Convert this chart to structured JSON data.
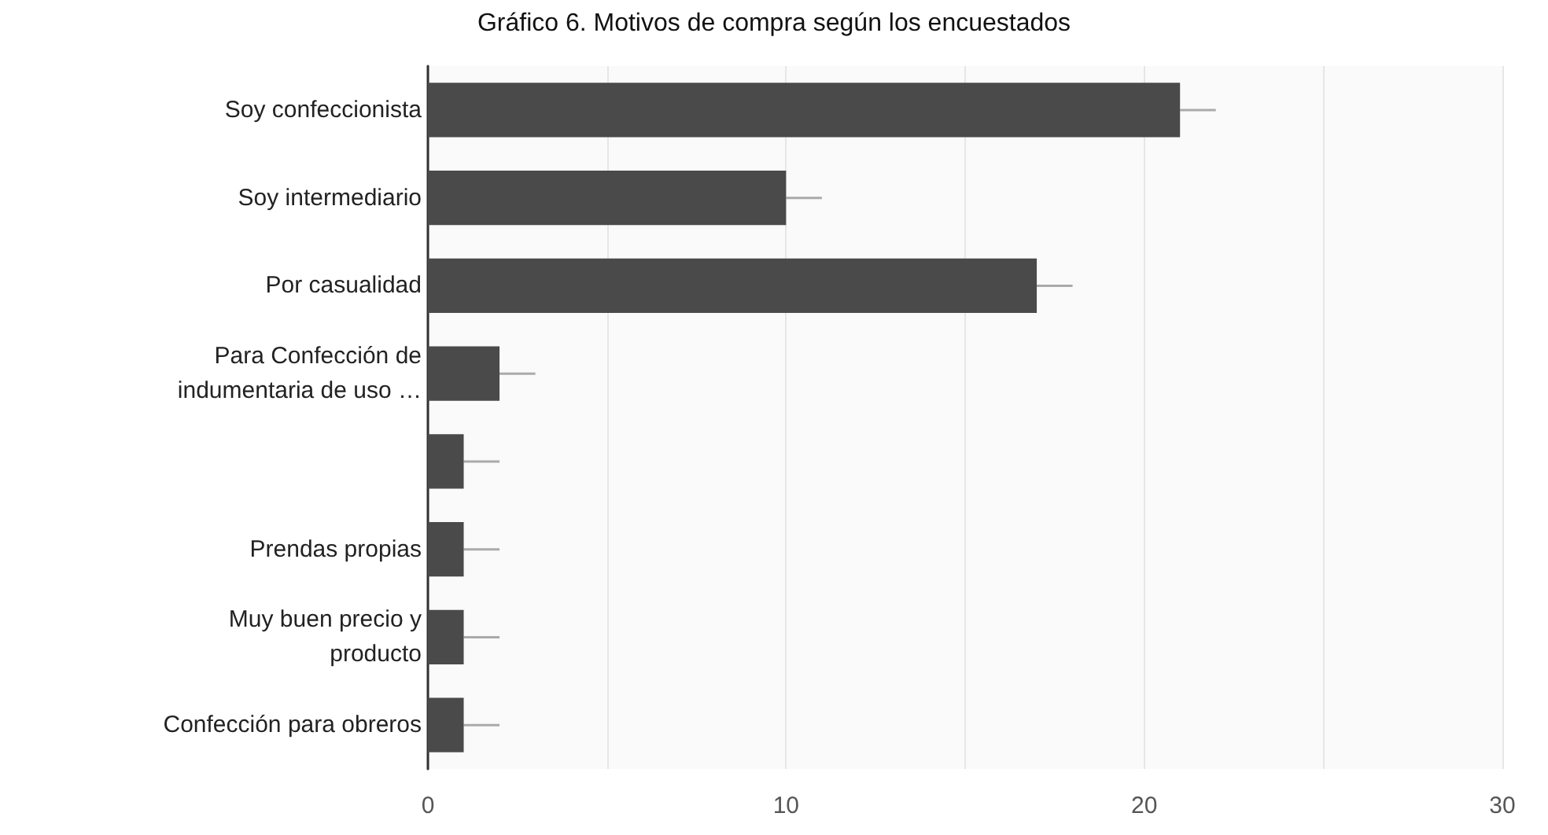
{
  "chart_data": {
    "type": "bar",
    "orientation": "horizontal",
    "title": "Gráfico 6. Motivos de compra según los encuestados",
    "categories": [
      "Soy confeccionista",
      "Soy intermediario",
      "Por casualidad",
      "Para Confección de\nindumentaria de uso …",
      null,
      "Prendas propias",
      "Muy buen precio y\nproducto",
      "Confección para obreros"
    ],
    "values": [
      21,
      10,
      17,
      2,
      1,
      1,
      1,
      1
    ],
    "errors": [
      [
        21,
        22
      ],
      [
        10,
        11
      ],
      [
        17,
        18
      ],
      [
        2,
        3
      ],
      [
        1,
        2
      ],
      [
        1,
        2
      ],
      [
        1,
        2
      ],
      [
        1,
        2
      ]
    ],
    "color": "#4a4a4a",
    "xlim": [
      0,
      30
    ],
    "xticks": [
      0,
      10,
      20,
      30
    ],
    "grid": "x"
  }
}
